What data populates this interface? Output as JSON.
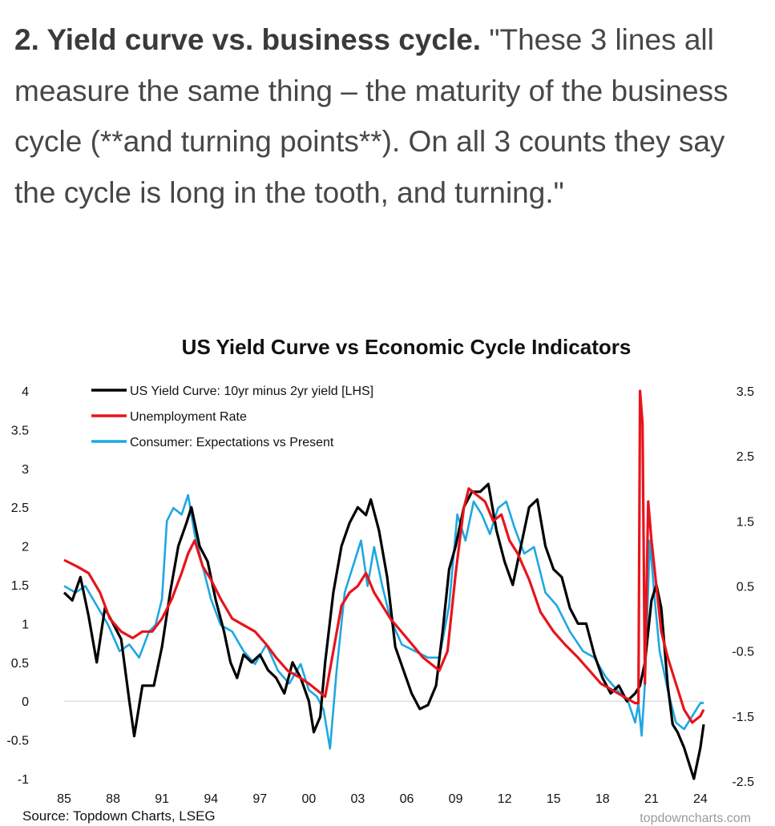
{
  "quote": {
    "heading": "2. Yield curve vs. business cycle.",
    "text": " \"These 3 lines all measure the same thing – the maturity of the business cycle (**and turning points**).  On all 3 counts they say the cycle is long in the tooth, and turning.\""
  },
  "colors": {
    "yield": "#000000",
    "unemployment": "#e8141b",
    "consumer": "#1ea7e1"
  },
  "chart_data": {
    "type": "line",
    "title": "US Yield Curve vs Economic Cycle Indicators",
    "xlim": [
      1985,
      2024.2
    ],
    "x_ticks": [
      "85",
      "88",
      "91",
      "94",
      "97",
      "00",
      "03",
      "06",
      "09",
      "12",
      "15",
      "18",
      "21",
      "24"
    ],
    "x_tick_values": [
      1985,
      1988,
      1991,
      1994,
      1997,
      2000,
      2003,
      2006,
      2009,
      2012,
      2015,
      2018,
      2021,
      2024
    ],
    "left_axis": {
      "ylim": [
        -1,
        4
      ],
      "ticks": [
        "4",
        "3.5",
        "3",
        "2.5",
        "2",
        "1.5",
        "1",
        "0.5",
        "0",
        "-0.5",
        "-1"
      ],
      "tick_values": [
        4,
        3.5,
        3,
        2.5,
        2,
        1.5,
        1,
        0.5,
        0,
        -0.5,
        -1
      ]
    },
    "right_axis": {
      "ylim": [
        -2.5,
        3.5
      ],
      "ticks": [
        "3.5",
        "2.5",
        "1.5",
        "0.5",
        "-0.5",
        "-1.5",
        "-2.5"
      ],
      "tick_values": [
        3.5,
        2.5,
        1.5,
        0.5,
        -0.5,
        -1.5,
        -2.5
      ]
    },
    "series": [
      {
        "name": "US Yield Curve: 10yr minus 2yr yield [LHS]",
        "axis": "left",
        "x": [
          1985,
          1985.5,
          1986,
          1986.5,
          1987,
          1987.5,
          1988,
          1988.5,
          1989,
          1989.3,
          1989.8,
          1990.5,
          1991,
          1991.5,
          1992,
          1992.5,
          1992.8,
          1993.3,
          1993.8,
          1994.3,
          1994.8,
          1995.2,
          1995.6,
          1996,
          1996.5,
          1997,
          1997.5,
          1998,
          1998.5,
          1999,
          1999.5,
          2000,
          2000.3,
          2000.7,
          2001,
          2001.5,
          2002,
          2002.5,
          2003,
          2003.5,
          2003.8,
          2004.3,
          2004.8,
          2005.3,
          2005.8,
          2006.3,
          2006.8,
          2007.3,
          2007.8,
          2008.2,
          2008.6,
          2009,
          2009.5,
          2010,
          2010.5,
          2011,
          2011.5,
          2012,
          2012.5,
          2013,
          2013.5,
          2014,
          2014.5,
          2015,
          2015.5,
          2016,
          2016.5,
          2017,
          2017.5,
          2018,
          2018.5,
          2019,
          2019.5,
          2020,
          2020.3,
          2020.6,
          2021,
          2021.3,
          2021.6,
          2022,
          2022.3,
          2022.6,
          2023,
          2023.3,
          2023.6,
          2024,
          2024.2
        ],
        "values": [
          1.4,
          1.3,
          1.6,
          1.1,
          0.5,
          1.2,
          1.0,
          0.8,
          0.0,
          -0.45,
          0.2,
          0.2,
          0.7,
          1.4,
          2.0,
          2.3,
          2.5,
          2.0,
          1.8,
          1.3,
          0.9,
          0.5,
          0.3,
          0.6,
          0.5,
          0.6,
          0.4,
          0.3,
          0.1,
          0.5,
          0.3,
          0.0,
          -0.4,
          -0.2,
          0.5,
          1.4,
          2.0,
          2.3,
          2.5,
          2.4,
          2.6,
          2.2,
          1.6,
          0.7,
          0.4,
          0.1,
          -0.1,
          -0.05,
          0.2,
          0.9,
          1.7,
          2.0,
          2.5,
          2.7,
          2.7,
          2.8,
          2.2,
          1.8,
          1.5,
          2.0,
          2.5,
          2.6,
          2.0,
          1.7,
          1.6,
          1.2,
          1.0,
          1.0,
          0.6,
          0.3,
          0.1,
          0.2,
          0.0,
          0.1,
          0.2,
          0.5,
          1.3,
          1.5,
          1.2,
          0.2,
          -0.3,
          -0.4,
          -0.6,
          -0.8,
          -1.0,
          -0.6,
          -0.3
        ]
      },
      {
        "name": "Unemployment Rate",
        "axis": "right",
        "x": [
          1985,
          1985.8,
          1986.5,
          1987.2,
          1987.8,
          1988.5,
          1989.2,
          1989.8,
          1990.4,
          1991,
          1991.6,
          1992.2,
          1992.6,
          1993,
          1993.5,
          1994,
          1994.6,
          1995.3,
          1996,
          1996.7,
          1997.4,
          1998,
          1998.7,
          1999.4,
          2000,
          2000.5,
          2001,
          2001.5,
          2002,
          2002.5,
          2003,
          2003.5,
          2004,
          2004.5,
          2005,
          2006,
          2007,
          2008,
          2008.5,
          2009,
          2009.5,
          2009.8,
          2010.3,
          2010.8,
          2011.3,
          2011.8,
          2012.3,
          2012.8,
          2013.5,
          2014.2,
          2015,
          2015.7,
          2016.5,
          2017.2,
          2017.9,
          2018.6,
          2019.3,
          2020,
          2020.2,
          2020.3,
          2020.45,
          2020.6,
          2020.8,
          2021,
          2021.3,
          2021.6,
          2022,
          2022.5,
          2023,
          2023.5,
          2024,
          2024.2
        ],
        "values": [
          0.9,
          0.8,
          0.7,
          0.4,
          0.0,
          -0.2,
          -0.3,
          -0.2,
          -0.2,
          0.0,
          0.3,
          0.7,
          1.0,
          1.2,
          0.8,
          0.6,
          0.3,
          0.0,
          -0.1,
          -0.2,
          -0.4,
          -0.6,
          -0.8,
          -0.9,
          -1.0,
          -1.1,
          -1.2,
          -0.5,
          0.2,
          0.4,
          0.5,
          0.7,
          0.4,
          0.2,
          0.0,
          -0.3,
          -0.6,
          -0.8,
          -0.5,
          0.7,
          1.7,
          2.0,
          1.9,
          1.8,
          1.5,
          1.6,
          1.2,
          1.0,
          0.6,
          0.1,
          -0.2,
          -0.4,
          -0.6,
          -0.8,
          -1.0,
          -1.1,
          -1.2,
          -1.3,
          -1.3,
          3.5,
          3.0,
          -1.0,
          1.8,
          1.2,
          0.5,
          -0.2,
          -0.6,
          -1.0,
          -1.4,
          -1.6,
          -1.5,
          -1.4
        ]
      },
      {
        "name": "Consumer: Expectations vs Present",
        "axis": "right",
        "x": [
          1985,
          1985.7,
          1986.3,
          1987,
          1987.7,
          1988.4,
          1989,
          1989.6,
          1990.2,
          1990.6,
          1991,
          1991.3,
          1991.7,
          1992.2,
          1992.6,
          1993,
          1993.5,
          1994,
          1994.6,
          1995.3,
          1996,
          1996.7,
          1997.4,
          1998.1,
          1998.8,
          1999.5,
          2000,
          2000.5,
          2000.9,
          2001.3,
          2001.7,
          2002.2,
          2002.7,
          2003.2,
          2003.6,
          2004,
          2004.5,
          2005,
          2005.7,
          2006.5,
          2007.3,
          2008,
          2008.6,
          2009.1,
          2009.6,
          2010.1,
          2010.6,
          2011.1,
          2011.6,
          2012.1,
          2012.6,
          2013.2,
          2013.8,
          2014.5,
          2015.2,
          2016,
          2016.8,
          2017.5,
          2018.2,
          2018.9,
          2019.6,
          2020,
          2020.2,
          2020.4,
          2020.6,
          2020.9,
          2021.2,
          2021.5,
          2022,
          2022.5,
          2023,
          2023.5,
          2024,
          2024.2
        ],
        "values": [
          0.5,
          0.4,
          0.5,
          0.2,
          -0.1,
          -0.5,
          -0.4,
          -0.6,
          -0.2,
          -0.1,
          0.3,
          1.5,
          1.7,
          1.6,
          1.9,
          1.3,
          0.8,
          0.3,
          -0.1,
          -0.2,
          -0.5,
          -0.7,
          -0.4,
          -0.8,
          -1.0,
          -0.7,
          -1.1,
          -1.2,
          -1.4,
          -2.0,
          -0.8,
          0.4,
          0.8,
          1.2,
          0.5,
          1.1,
          0.5,
          0.0,
          -0.4,
          -0.5,
          -0.6,
          -0.6,
          0.2,
          1.6,
          1.2,
          1.8,
          1.6,
          1.3,
          1.7,
          1.8,
          1.4,
          1.0,
          1.1,
          0.4,
          0.2,
          -0.2,
          -0.5,
          -0.6,
          -0.9,
          -1.1,
          -1.3,
          -1.6,
          -1.3,
          -1.8,
          -1.0,
          1.2,
          0.3,
          -0.5,
          -1.1,
          -1.6,
          -1.7,
          -1.5,
          -1.3,
          -1.3
        ]
      }
    ],
    "source_note": "Source: Topdown Charts, LSEG",
    "watermark": "topdowncharts.com"
  }
}
